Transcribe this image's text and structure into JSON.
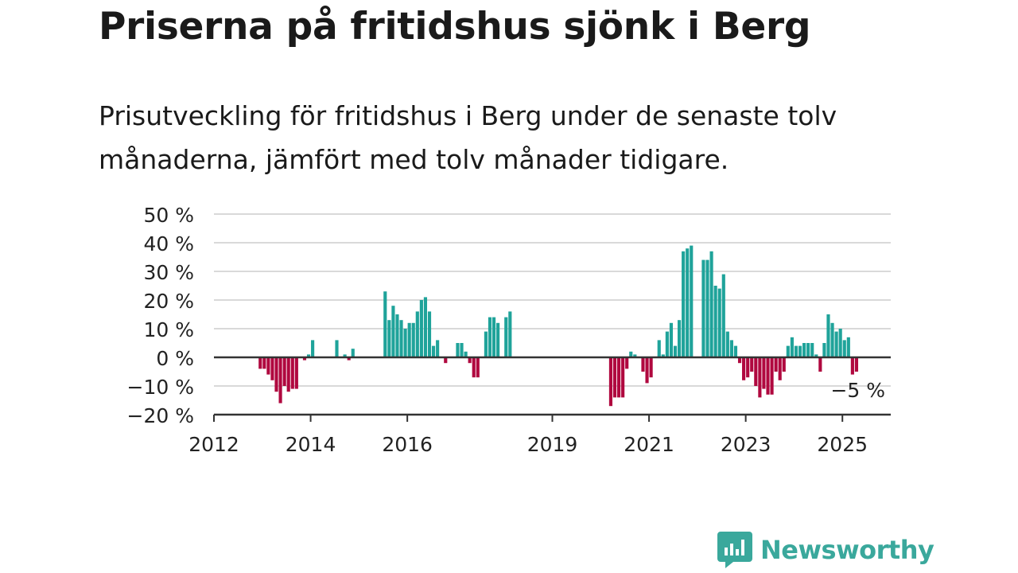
{
  "title": "Priserna på fritidshus sjönk i Berg",
  "subtitle": "Prisutveckling för fritidshus i Berg under de senaste tolv månaderna, jämfört med tolv månader tidigare.",
  "brand": {
    "name": "Newsworthy",
    "color": "#3aa89c"
  },
  "colors": {
    "positive": "#1fa39a",
    "negative": "#b0083f",
    "grid": "#d9d9d9",
    "axis": "#333333"
  },
  "chart_data": {
    "type": "bar",
    "ylim": [
      -20,
      50
    ],
    "y_ticks": [
      -20,
      -10,
      0,
      10,
      20,
      30,
      40,
      50
    ],
    "y_tick_labels": [
      "−20 %",
      "−10 %",
      "0 %",
      "10 %",
      "20 %",
      "30 %",
      "40 %",
      "50 %"
    ],
    "x_ticks": [
      2012,
      2014,
      2016,
      2019,
      2021,
      2023,
      2025
    ],
    "x_tick_labels": [
      "2012",
      "2014",
      "2016",
      "2019",
      "2021",
      "2023",
      "2025"
    ],
    "xlim": [
      "2012-01",
      "2025-12"
    ],
    "grid": true,
    "last_value_label": "−5 %",
    "series": [
      {
        "points": [
          [
            "2012-12",
            -4
          ],
          [
            "2013-01",
            -4
          ],
          [
            "2013-02",
            -6
          ],
          [
            "2013-03",
            -8
          ],
          [
            "2013-04",
            -12
          ],
          [
            "2013-05",
            -16
          ],
          [
            "2013-06",
            -10
          ],
          [
            "2013-07",
            -12
          ],
          [
            "2013-08",
            -11
          ],
          [
            "2013-09",
            -11
          ],
          [
            "2013-11",
            -1
          ],
          [
            "2013-12",
            1
          ],
          [
            "2014-01",
            6
          ],
          [
            "2014-07",
            6
          ],
          [
            "2014-09",
            1
          ],
          [
            "2014-10",
            -1
          ],
          [
            "2014-11",
            3
          ],
          [
            "2015-07",
            23
          ],
          [
            "2015-08",
            13
          ],
          [
            "2015-09",
            18
          ],
          [
            "2015-10",
            15
          ],
          [
            "2015-11",
            13
          ],
          [
            "2015-12",
            10
          ],
          [
            "2016-01",
            12
          ],
          [
            "2016-02",
            12
          ],
          [
            "2016-03",
            16
          ],
          [
            "2016-04",
            20
          ],
          [
            "2016-05",
            21
          ],
          [
            "2016-06",
            16
          ],
          [
            "2016-07",
            4
          ],
          [
            "2016-08",
            6
          ],
          [
            "2016-10",
            -2
          ],
          [
            "2017-01",
            5
          ],
          [
            "2017-02",
            5
          ],
          [
            "2017-03",
            2
          ],
          [
            "2017-04",
            -2
          ],
          [
            "2017-05",
            -7
          ],
          [
            "2017-06",
            -7
          ],
          [
            "2017-08",
            9
          ],
          [
            "2017-09",
            14
          ],
          [
            "2017-10",
            14
          ],
          [
            "2017-11",
            12
          ],
          [
            "2018-01",
            14
          ],
          [
            "2018-02",
            16
          ],
          [
            "2020-03",
            -17
          ],
          [
            "2020-04",
            -14
          ],
          [
            "2020-05",
            -14
          ],
          [
            "2020-06",
            -14
          ],
          [
            "2020-07",
            -4
          ],
          [
            "2020-08",
            2
          ],
          [
            "2020-09",
            1
          ],
          [
            "2020-11",
            -5
          ],
          [
            "2020-12",
            -9
          ],
          [
            "2021-01",
            -7
          ],
          [
            "2021-03",
            6
          ],
          [
            "2021-04",
            1
          ],
          [
            "2021-05",
            9
          ],
          [
            "2021-06",
            12
          ],
          [
            "2021-07",
            4
          ],
          [
            "2021-08",
            13
          ],
          [
            "2021-09",
            37
          ],
          [
            "2021-10",
            38
          ],
          [
            "2021-11",
            39
          ],
          [
            "2022-02",
            34
          ],
          [
            "2022-03",
            34
          ],
          [
            "2022-04",
            37
          ],
          [
            "2022-05",
            25
          ],
          [
            "2022-06",
            24
          ],
          [
            "2022-07",
            29
          ],
          [
            "2022-08",
            9
          ],
          [
            "2022-09",
            6
          ],
          [
            "2022-10",
            4
          ],
          [
            "2022-11",
            -2
          ],
          [
            "2022-12",
            -8
          ],
          [
            "2023-01",
            -7
          ],
          [
            "2023-02",
            -5
          ],
          [
            "2023-03",
            -10
          ],
          [
            "2023-04",
            -14
          ],
          [
            "2023-05",
            -11
          ],
          [
            "2023-06",
            -13
          ],
          [
            "2023-07",
            -13
          ],
          [
            "2023-08",
            -5
          ],
          [
            "2023-09",
            -8
          ],
          [
            "2023-10",
            -5
          ],
          [
            "2023-11",
            4
          ],
          [
            "2023-12",
            7
          ],
          [
            "2024-01",
            4
          ],
          [
            "2024-02",
            4
          ],
          [
            "2024-03",
            5
          ],
          [
            "2024-04",
            5
          ],
          [
            "2024-05",
            5
          ],
          [
            "2024-06",
            1
          ],
          [
            "2024-07",
            -5
          ],
          [
            "2024-08",
            5
          ],
          [
            "2024-09",
            15
          ],
          [
            "2024-10",
            12
          ],
          [
            "2024-11",
            9
          ],
          [
            "2024-12",
            10
          ],
          [
            "2025-01",
            6
          ],
          [
            "2025-02",
            7
          ],
          [
            "2025-03",
            -6
          ],
          [
            "2025-04",
            -5
          ]
        ]
      }
    ]
  }
}
